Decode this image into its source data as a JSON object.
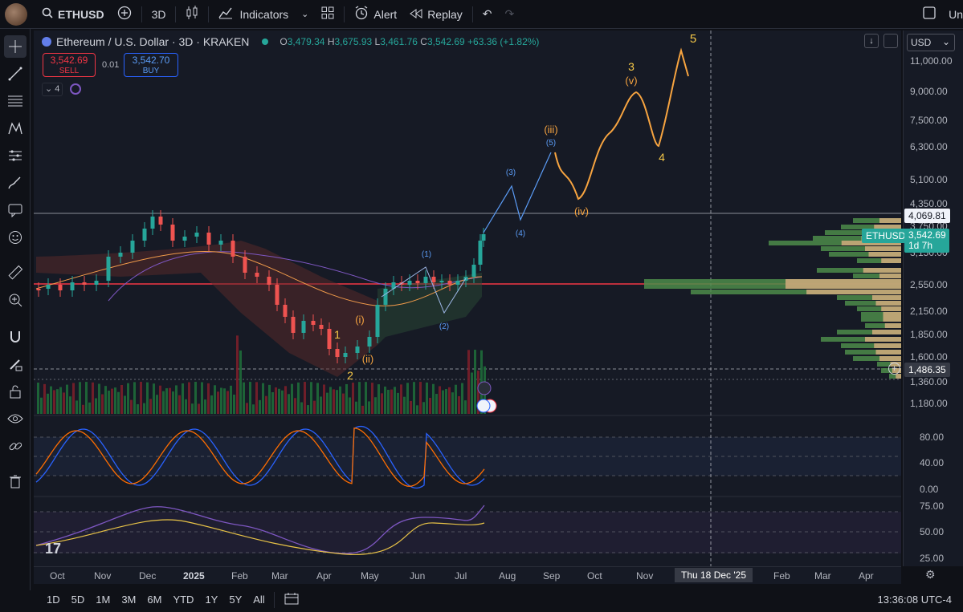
{
  "topbar": {
    "symbol": "ETHUSD",
    "interval": "3D",
    "indicators_label": "Indicators",
    "alert_label": "Alert",
    "replay_label": "Replay",
    "right_label": "Un"
  },
  "legend": {
    "title": "Ethereum / U.S. Dollar · 3D · KRAKEN",
    "open_label": "O",
    "open": "3,479.34",
    "high_label": "H",
    "high": "3,675.93",
    "low_label": "L",
    "low": "3,461.76",
    "close_label": "C",
    "close": "3,542.69",
    "change": "+63.36 (+1.82%)"
  },
  "trade": {
    "sell_price": "3,542.69",
    "sell_label": "SELL",
    "spread": "0.01",
    "buy_price": "3,542.70",
    "buy_label": "BUY"
  },
  "indicator_count": "4",
  "currency": "USD",
  "price_axis": [
    "11,000.00",
    "9,000.00",
    "7,500.00",
    "6,300.00",
    "5,100.00",
    "4,350.00",
    "3,750.00",
    "3,150.00",
    "2,550.00",
    "2,150.00",
    "1,850.00",
    "1,600.00",
    "1,360.00",
    "1,180.00"
  ],
  "price_badges": {
    "resistance": "4,069.81",
    "symbol": "ETHUSD",
    "last_price": "3,542.69",
    "countdown": "1d 7h",
    "crosshair_price": "1,486.35"
  },
  "osc_axis": [
    "80.00",
    "40.00",
    "0.00"
  ],
  "rsi_axis": [
    "75.00",
    "50.00",
    "25.00"
  ],
  "time_axis": [
    "Oct",
    "Nov",
    "Dec",
    "2025",
    "Feb",
    "Mar",
    "Apr",
    "May",
    "Jun",
    "Jul",
    "Aug",
    "Sep",
    "Oct",
    "Nov",
    "Thu 18 Dec '25",
    "Feb",
    "Mar",
    "Apr"
  ],
  "ranges": [
    "1D",
    "5D",
    "1M",
    "3M",
    "6M",
    "YTD",
    "1Y",
    "5Y",
    "All"
  ],
  "clock": "13:36:08 UTC-4",
  "wave_labels": {
    "w1": "1",
    "w2": "2",
    "w3": "3",
    "w4": "4",
    "w5": "5",
    "wi": "(i)",
    "wii": "(ii)",
    "wiii": "(iii)",
    "wiv": "(iv)",
    "wv": "(v)",
    "s1": "(1)",
    "s2": "(2)",
    "s3": "(3)",
    "s4": "(4)",
    "s5": "(5)"
  },
  "colors": {
    "up": "#26a69a",
    "down": "#ef5350",
    "wave_orange": "#f7a440",
    "wave_blue": "#5b9cf6",
    "support_line": "#f23645"
  }
}
